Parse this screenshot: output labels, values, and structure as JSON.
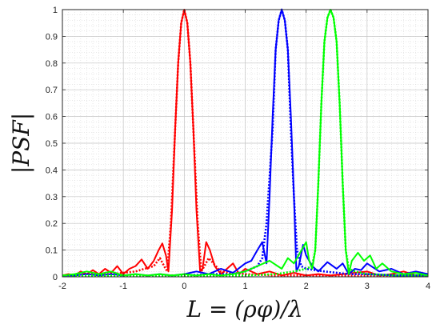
{
  "chart_data": {
    "type": "line",
    "title": "",
    "xlabel": "L = (ρφ)/λ",
    "ylabel": "|PSF|",
    "xlim": [
      -2,
      4
    ],
    "ylim": [
      0,
      1
    ],
    "x_ticks": [
      -2,
      -1,
      0,
      1,
      2,
      3,
      4
    ],
    "x_tick_labels": [
      "-2",
      "-1",
      "0",
      "1",
      "2",
      "3",
      "4"
    ],
    "y_ticks": [
      0,
      0.1,
      0.2,
      0.3,
      0.4,
      0.5,
      0.6,
      0.7,
      0.8,
      0.9,
      1
    ],
    "y_tick_labels": [
      "0",
      "0.1",
      "0.2",
      "0.3",
      "0.4",
      "0.5",
      "0.6",
      "0.7",
      "0.8",
      "0.9",
      "1"
    ],
    "grid": true,
    "legend": "none",
    "colors": {
      "red": "#ff0000",
      "blue": "#0000ff",
      "green": "#00ff00"
    },
    "series": [
      {
        "color": "#ff0000",
        "style": "solid",
        "x": [
          -2,
          -1.9,
          -1.8,
          -1.7,
          -1.6,
          -1.5,
          -1.4,
          -1.3,
          -1.2,
          -1.1,
          -1.0,
          -0.9,
          -0.8,
          -0.7,
          -0.6,
          -0.5,
          -0.42,
          -0.36,
          -0.3,
          -0.26,
          -0.2,
          -0.15,
          -0.1,
          -0.05,
          0,
          0.05,
          0.1,
          0.15,
          0.2,
          0.26,
          0.3,
          0.36,
          0.42,
          0.5,
          0.6,
          0.7,
          0.8,
          0.9,
          1.0,
          1.2,
          1.4,
          1.6,
          1.8,
          2.0,
          2.2,
          2.4,
          2.6,
          2.8,
          3.0,
          3.2,
          3.4,
          3.6,
          3.8,
          4.0
        ],
        "y": [
          0.005,
          0.01,
          0.005,
          0.02,
          0.01,
          0.025,
          0.01,
          0.03,
          0.015,
          0.04,
          0.01,
          0.03,
          0.04,
          0.065,
          0.03,
          0.06,
          0.1,
          0.125,
          0.08,
          0.02,
          0.25,
          0.55,
          0.8,
          0.95,
          1.0,
          0.95,
          0.8,
          0.55,
          0.25,
          0.02,
          0.03,
          0.13,
          0.1,
          0.04,
          0.01,
          0.03,
          0.05,
          0.01,
          0.03,
          0.01,
          0.02,
          0.005,
          0.015,
          0.005,
          0.01,
          0.005,
          0.01,
          0.015,
          0.02,
          0.005,
          0.01,
          0.02,
          0.005,
          0.01
        ]
      },
      {
        "color": "#ff0000",
        "style": "dotted",
        "x": [
          -2,
          -1.6,
          -1.2,
          -0.8,
          -0.5,
          -0.4,
          -0.33,
          -0.28,
          -0.22,
          -0.15,
          -0.1,
          -0.05,
          0,
          0.05,
          0.1,
          0.15,
          0.22,
          0.28,
          0.33,
          0.4,
          0.6,
          1.0,
          1.5,
          2.0,
          3.0,
          4.0
        ],
        "y": [
          0.005,
          0.01,
          0.01,
          0.02,
          0.04,
          0.07,
          0.04,
          0.02,
          0.2,
          0.55,
          0.8,
          0.95,
          1.0,
          0.95,
          0.8,
          0.55,
          0.2,
          0.02,
          0.04,
          0.07,
          0.02,
          0.01,
          0.005,
          0.005,
          0.005,
          0.005
        ]
      },
      {
        "color": "#0000ff",
        "style": "solid",
        "x": [
          -2,
          -1.8,
          -1.6,
          -1.4,
          -1.2,
          -1.0,
          -0.8,
          -0.6,
          -0.4,
          -0.2,
          0,
          0.2,
          0.4,
          0.6,
          0.8,
          1.0,
          1.1,
          1.2,
          1.28,
          1.35,
          1.4,
          1.45,
          1.5,
          1.55,
          1.6,
          1.65,
          1.7,
          1.75,
          1.8,
          1.84,
          1.88,
          1.95,
          2.0,
          2.1,
          2.2,
          2.35,
          2.5,
          2.6,
          2.7,
          2.8,
          2.9,
          3.0,
          3.2,
          3.4,
          3.6,
          3.8,
          4.0
        ],
        "y": [
          0.005,
          0.005,
          0.01,
          0.005,
          0.01,
          0.005,
          0.01,
          0.005,
          0.01,
          0.005,
          0.01,
          0.02,
          0.01,
          0.03,
          0.015,
          0.05,
          0.06,
          0.1,
          0.13,
          0.05,
          0.3,
          0.6,
          0.85,
          0.96,
          1.0,
          0.96,
          0.85,
          0.6,
          0.3,
          0.02,
          0.04,
          0.12,
          0.08,
          0.04,
          0.02,
          0.055,
          0.03,
          0.05,
          0.01,
          0.03,
          0.025,
          0.05,
          0.02,
          0.03,
          0.01,
          0.02,
          0.01
        ]
      },
      {
        "color": "#0000ff",
        "style": "dotted",
        "x": [
          -2,
          -1.0,
          0,
          0.5,
          0.8,
          1.0,
          1.2,
          1.28,
          1.35,
          1.45,
          1.5,
          1.55,
          1.6,
          1.65,
          1.7,
          1.75,
          1.8,
          1.85,
          1.92,
          2.0,
          2.3,
          2.7,
          3.0,
          3.5,
          4.0
        ],
        "y": [
          0.005,
          0.005,
          0.005,
          0.01,
          0.01,
          0.02,
          0.04,
          0.07,
          0.2,
          0.55,
          0.85,
          0.96,
          1.0,
          0.96,
          0.85,
          0.55,
          0.3,
          0.1,
          0.04,
          0.03,
          0.02,
          0.01,
          0.01,
          0.005,
          0.005
        ]
      },
      {
        "color": "#00ff00",
        "style": "solid",
        "x": [
          -2,
          -1.8,
          -1.6,
          -1.4,
          -1.2,
          -1.0,
          -0.8,
          -0.6,
          -0.4,
          -0.2,
          0,
          0.2,
          0.4,
          0.6,
          0.8,
          1.0,
          1.2,
          1.4,
          1.6,
          1.7,
          1.8,
          1.9,
          1.95,
          2.0,
          2.05,
          2.1,
          2.15,
          2.2,
          2.25,
          2.3,
          2.35,
          2.4,
          2.45,
          2.5,
          2.55,
          2.6,
          2.65,
          2.7,
          2.75,
          2.85,
          2.95,
          3.05,
          3.15,
          3.25,
          3.4,
          3.6,
          3.8,
          4.0
        ],
        "y": [
          0.005,
          0.01,
          0.02,
          0.01,
          0.02,
          0.005,
          0.01,
          0.005,
          0.01,
          0.005,
          0.01,
          0.005,
          0.01,
          0.005,
          0.01,
          0.02,
          0.04,
          0.06,
          0.03,
          0.07,
          0.05,
          0.09,
          0.11,
          0.13,
          0.06,
          0.03,
          0.1,
          0.35,
          0.65,
          0.88,
          0.97,
          1.0,
          0.97,
          0.88,
          0.65,
          0.35,
          0.1,
          0.01,
          0.06,
          0.09,
          0.06,
          0.08,
          0.03,
          0.05,
          0.02,
          0.01,
          0.015,
          0.005
        ]
      },
      {
        "color": "#00ff00",
        "style": "dotted",
        "x": [
          -2,
          -1.0,
          0,
          1.0,
          1.5,
          1.8,
          2.0,
          2.1,
          2.15,
          2.2,
          2.25,
          2.3,
          2.35,
          2.4,
          2.45,
          2.5,
          2.55,
          2.6,
          2.65,
          2.7,
          2.8,
          3.0,
          3.5,
          4.0
        ],
        "y": [
          0.005,
          0.005,
          0.005,
          0.005,
          0.01,
          0.02,
          0.03,
          0.04,
          0.1,
          0.35,
          0.65,
          0.88,
          0.97,
          1.0,
          0.97,
          0.88,
          0.65,
          0.35,
          0.1,
          0.03,
          0.02,
          0.01,
          0.005,
          0.005
        ]
      }
    ]
  }
}
